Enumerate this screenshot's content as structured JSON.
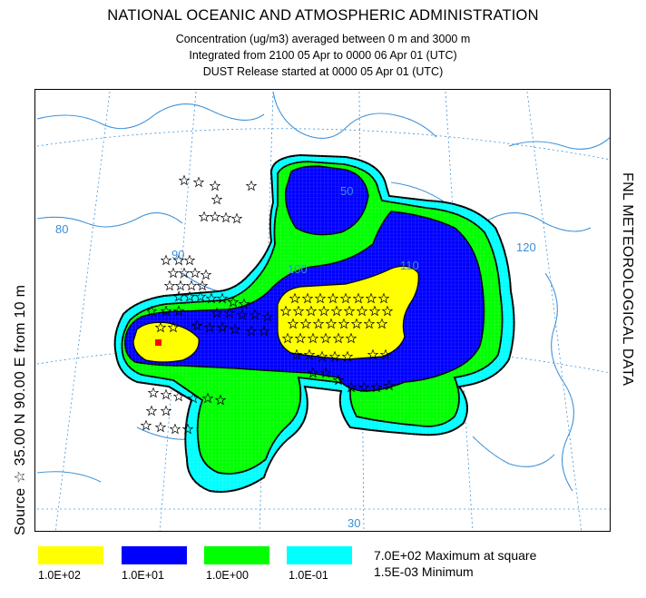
{
  "header": {
    "title": "NATIONAL OCEANIC AND ATMOSPHERIC ADMINISTRATION",
    "line1": "Concentration  (ug/m3) averaged between     0 m and  3000 m",
    "line2": "Integrated from 2100 05 Apr to 0000 06 Apr 01 (UTC)",
    "line3": "DUST Release started at 0000 05 Apr 01 (UTC)"
  },
  "side_labels": {
    "left": "Source ☆  35.00 N   90.00 E    from   10 m",
    "right": "FNL  METEOROLOGICAL DATA"
  },
  "map_labels": {
    "lat50": "50",
    "lon80": "80",
    "lon90": "90",
    "lon100": "100",
    "lon110": "110",
    "lon120": "120",
    "lat30": "30"
  },
  "legend": {
    "items": [
      {
        "label": "1.0E+02",
        "color": "#ffff00"
      },
      {
        "label": "1.0E+01",
        "color": "#0000ff"
      },
      {
        "label": "1.0E+00",
        "color": "#00ff00"
      },
      {
        "label": "1.0E-01",
        "color": "#00ffff"
      }
    ],
    "maximum": "7.0E+02  Maximum at square",
    "minimum": "1.5E-03  Minimum"
  },
  "colors": {
    "yellow": "#ffff00",
    "blue": "#0000ff",
    "green": "#00ff00",
    "cyan": "#00ffff",
    "source": "#ff0000",
    "coast": "#3a8fd8",
    "grid": "#3a8fd8"
  }
}
